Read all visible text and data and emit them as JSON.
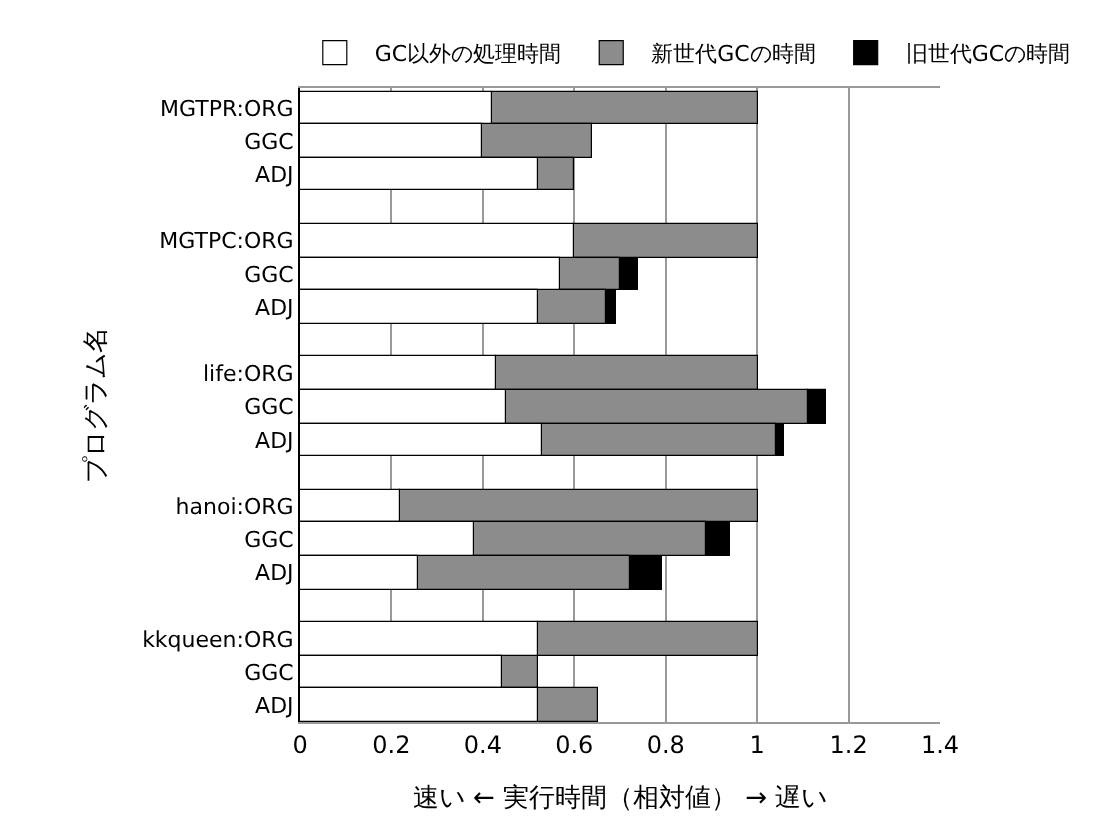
{
  "chart_data": {
    "type": "bar",
    "orientation": "horizontal",
    "stacked": true,
    "categories": [
      "MGTPR:ORG",
      "GGC",
      "ADJ",
      null,
      "MGTPC:ORG",
      "GGC",
      "ADJ",
      null,
      "life:ORG",
      "GGC",
      "ADJ",
      null,
      "hanoi:ORG",
      "GGC",
      "ADJ",
      null,
      "kkqueen:ORG",
      "GGC",
      "ADJ"
    ],
    "series": [
      {
        "name": "GC以外の処理時間",
        "color": "#ffffff",
        "values": [
          0.42,
          0.4,
          0.52,
          null,
          0.6,
          0.57,
          0.52,
          null,
          0.43,
          0.45,
          0.53,
          null,
          0.22,
          0.38,
          0.26,
          null,
          0.52,
          0.44,
          0.52
        ]
      },
      {
        "name": "新世代GCの時間",
        "color": "#8c8c8c",
        "values": [
          0.58,
          0.24,
          0.08,
          null,
          0.4,
          0.13,
          0.15,
          null,
          0.57,
          0.66,
          0.51,
          null,
          0.78,
          0.51,
          0.46,
          null,
          0.48,
          0.08,
          0.13
        ]
      },
      {
        "name": "旧世代GCの時間",
        "color": "#000000",
        "values": [
          0,
          0,
          0,
          null,
          0,
          0.04,
          0.02,
          null,
          0,
          0.04,
          0.02,
          null,
          0,
          0.05,
          0.07,
          null,
          0,
          0,
          0
        ]
      }
    ],
    "xlabel": "速い ← 実行時間（相対値） → 遅い",
    "ylabel": "プログラム名",
    "xlim": [
      0,
      1.4
    ],
    "xticks": [
      0,
      0.2,
      0.4,
      0.6,
      0.8,
      1,
      1.2,
      1.4
    ],
    "grid": "x",
    "legend": "top"
  }
}
